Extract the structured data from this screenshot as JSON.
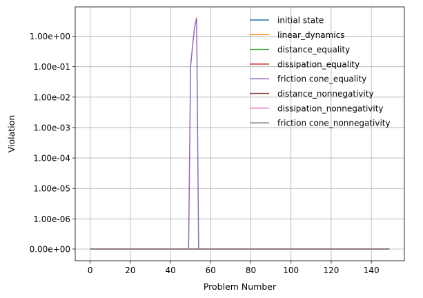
{
  "chart_data": {
    "type": "line",
    "title": "",
    "xlabel": "Problem Number",
    "ylabel": "Violation",
    "xlim": [
      -7.45,
      156.45
    ],
    "x_ticks": [
      0,
      20,
      40,
      60,
      80,
      100,
      120,
      140
    ],
    "y_scale": "symlog",
    "y_ticks": [
      {
        "value": 0,
        "label": "0.00e+00"
      },
      {
        "value": 1e-06,
        "label": "1.00e-06"
      },
      {
        "value": 1e-05,
        "label": "1.00e-05"
      },
      {
        "value": 0.0001,
        "label": "1.00e-04"
      },
      {
        "value": 0.001,
        "label": "1.00e-03"
      },
      {
        "value": 0.01,
        "label": "1.00e-02"
      },
      {
        "value": 0.1,
        "label": "1.00e-01"
      },
      {
        "value": 1,
        "label": "1.00e+00"
      }
    ],
    "grid": true,
    "legend_position": "top-right",
    "x_range": [
      0,
      149
    ],
    "series": [
      {
        "name": "initial state",
        "color": "#1f77b4",
        "points": [
          [
            0,
            0
          ],
          [
            149,
            0
          ]
        ]
      },
      {
        "name": "linear_dynamics",
        "color": "#ff7f0e",
        "points": [
          [
            0,
            0
          ],
          [
            149,
            0
          ]
        ]
      },
      {
        "name": "distance_equality",
        "color": "#2ca02c",
        "points": [
          [
            0,
            0
          ],
          [
            149,
            0
          ]
        ]
      },
      {
        "name": "dissipation_equality",
        "color": "#d62728",
        "points": [
          [
            0,
            0
          ],
          [
            149,
            0
          ]
        ]
      },
      {
        "name": "friction cone_equality",
        "color": "#9467bd",
        "points": [
          [
            0,
            0
          ],
          [
            49,
            0
          ],
          [
            50,
            0.1
          ],
          [
            51,
            0.5
          ],
          [
            52,
            2.0
          ],
          [
            53,
            4.0
          ],
          [
            54,
            0
          ],
          [
            149,
            0
          ]
        ]
      },
      {
        "name": "distance_nonnegativity",
        "color": "#8c564b",
        "points": [
          [
            0,
            0
          ],
          [
            149,
            0
          ]
        ]
      },
      {
        "name": "dissipation_nonnegativity",
        "color": "#e377c2",
        "points": [
          [
            0,
            0
          ],
          [
            149,
            0
          ]
        ]
      },
      {
        "name": "friction cone_nonnegativity",
        "color": "#7f7f7f",
        "points": [
          [
            0,
            0
          ],
          [
            149,
            0
          ]
        ]
      }
    ]
  }
}
